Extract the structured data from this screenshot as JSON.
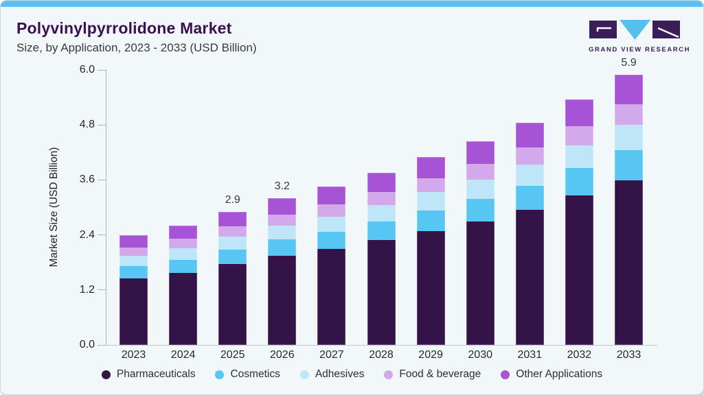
{
  "header": {
    "title": "Polyvinylpyrrolidone Market",
    "subtitle": "Size, by Application, 2023 - 2033 (USD Billion)"
  },
  "logo": {
    "text": "GRAND VIEW RESEARCH"
  },
  "colors": {
    "accent_top_bar": "#5bc0ee",
    "card_background": "#f2f7fa",
    "title_text": "#3a1055",
    "logo_purple": "#3a1d59",
    "logo_triangle_blue": "#55c0ec",
    "axis_line": "#aeb6bd"
  },
  "chart_data": {
    "type": "bar",
    "stacked": true,
    "title": "Polyvinylpyrrolidone Market Size, by Application, 2023 - 2033 (USD Billion)",
    "xlabel": "",
    "ylabel": "Market Size (USD Billion)",
    "ylim": [
      0,
      6.0
    ],
    "yticks": [
      "0.0",
      "1.2",
      "2.4",
      "3.6",
      "4.8",
      "6.0"
    ],
    "grid": false,
    "legend_position": "bottom",
    "categories": [
      "2023",
      "2024",
      "2025",
      "2026",
      "2027",
      "2028",
      "2029",
      "2030",
      "2031",
      "2032",
      "2033"
    ],
    "series": [
      {
        "name": "Pharmaceuticals",
        "color": "#341348",
        "values": [
          1.45,
          1.57,
          1.76,
          1.94,
          2.09,
          2.28,
          2.49,
          2.7,
          2.95,
          3.26,
          3.6
        ]
      },
      {
        "name": "Cosmetics",
        "color": "#58c6f2",
        "values": [
          0.27,
          0.29,
          0.32,
          0.36,
          0.38,
          0.41,
          0.45,
          0.49,
          0.53,
          0.59,
          0.65
        ]
      },
      {
        "name": "Adhesives",
        "color": "#bfe6f8",
        "values": [
          0.23,
          0.25,
          0.28,
          0.3,
          0.33,
          0.36,
          0.39,
          0.42,
          0.46,
          0.5,
          0.55
        ]
      },
      {
        "name": "Food & beverage",
        "color": "#d2a9ea",
        "values": [
          0.18,
          0.2,
          0.22,
          0.24,
          0.26,
          0.28,
          0.31,
          0.34,
          0.37,
          0.41,
          0.45
        ]
      },
      {
        "name": "Other Applications",
        "color": "#a653d6",
        "values": [
          0.27,
          0.29,
          0.32,
          0.36,
          0.39,
          0.42,
          0.46,
          0.5,
          0.54,
          0.59,
          0.65
        ]
      }
    ],
    "totals": [
      2.4,
      2.6,
      2.9,
      3.2,
      3.45,
      3.75,
      4.1,
      4.45,
      4.85,
      5.35,
      5.9
    ],
    "bar_value_labels": [
      {
        "category": "2025",
        "text": "2.9"
      },
      {
        "category": "2026",
        "text": "3.2"
      },
      {
        "category": "2033",
        "text": "5.9"
      }
    ]
  }
}
